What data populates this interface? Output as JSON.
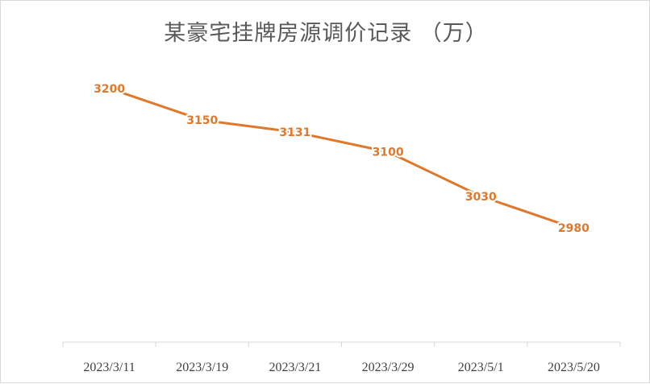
{
  "chart_data": {
    "type": "line",
    "title": "某豪宅挂牌房源调价记录 （万）",
    "categories": [
      "2023/3/11",
      "2023/3/19",
      "2023/3/21",
      "2023/3/29",
      "2023/5/1",
      "2023/5/20"
    ],
    "series": [
      {
        "values": [
          3200,
          3150,
          3131,
          3100,
          3030,
          2980
        ],
        "color": "#e0782a"
      }
    ],
    "xlabel": "",
    "ylabel": "",
    "ylim": [
      2800,
      3300
    ],
    "grid": false,
    "legend": "none",
    "data_labels": true,
    "axis_color": "#d9d9d9"
  }
}
